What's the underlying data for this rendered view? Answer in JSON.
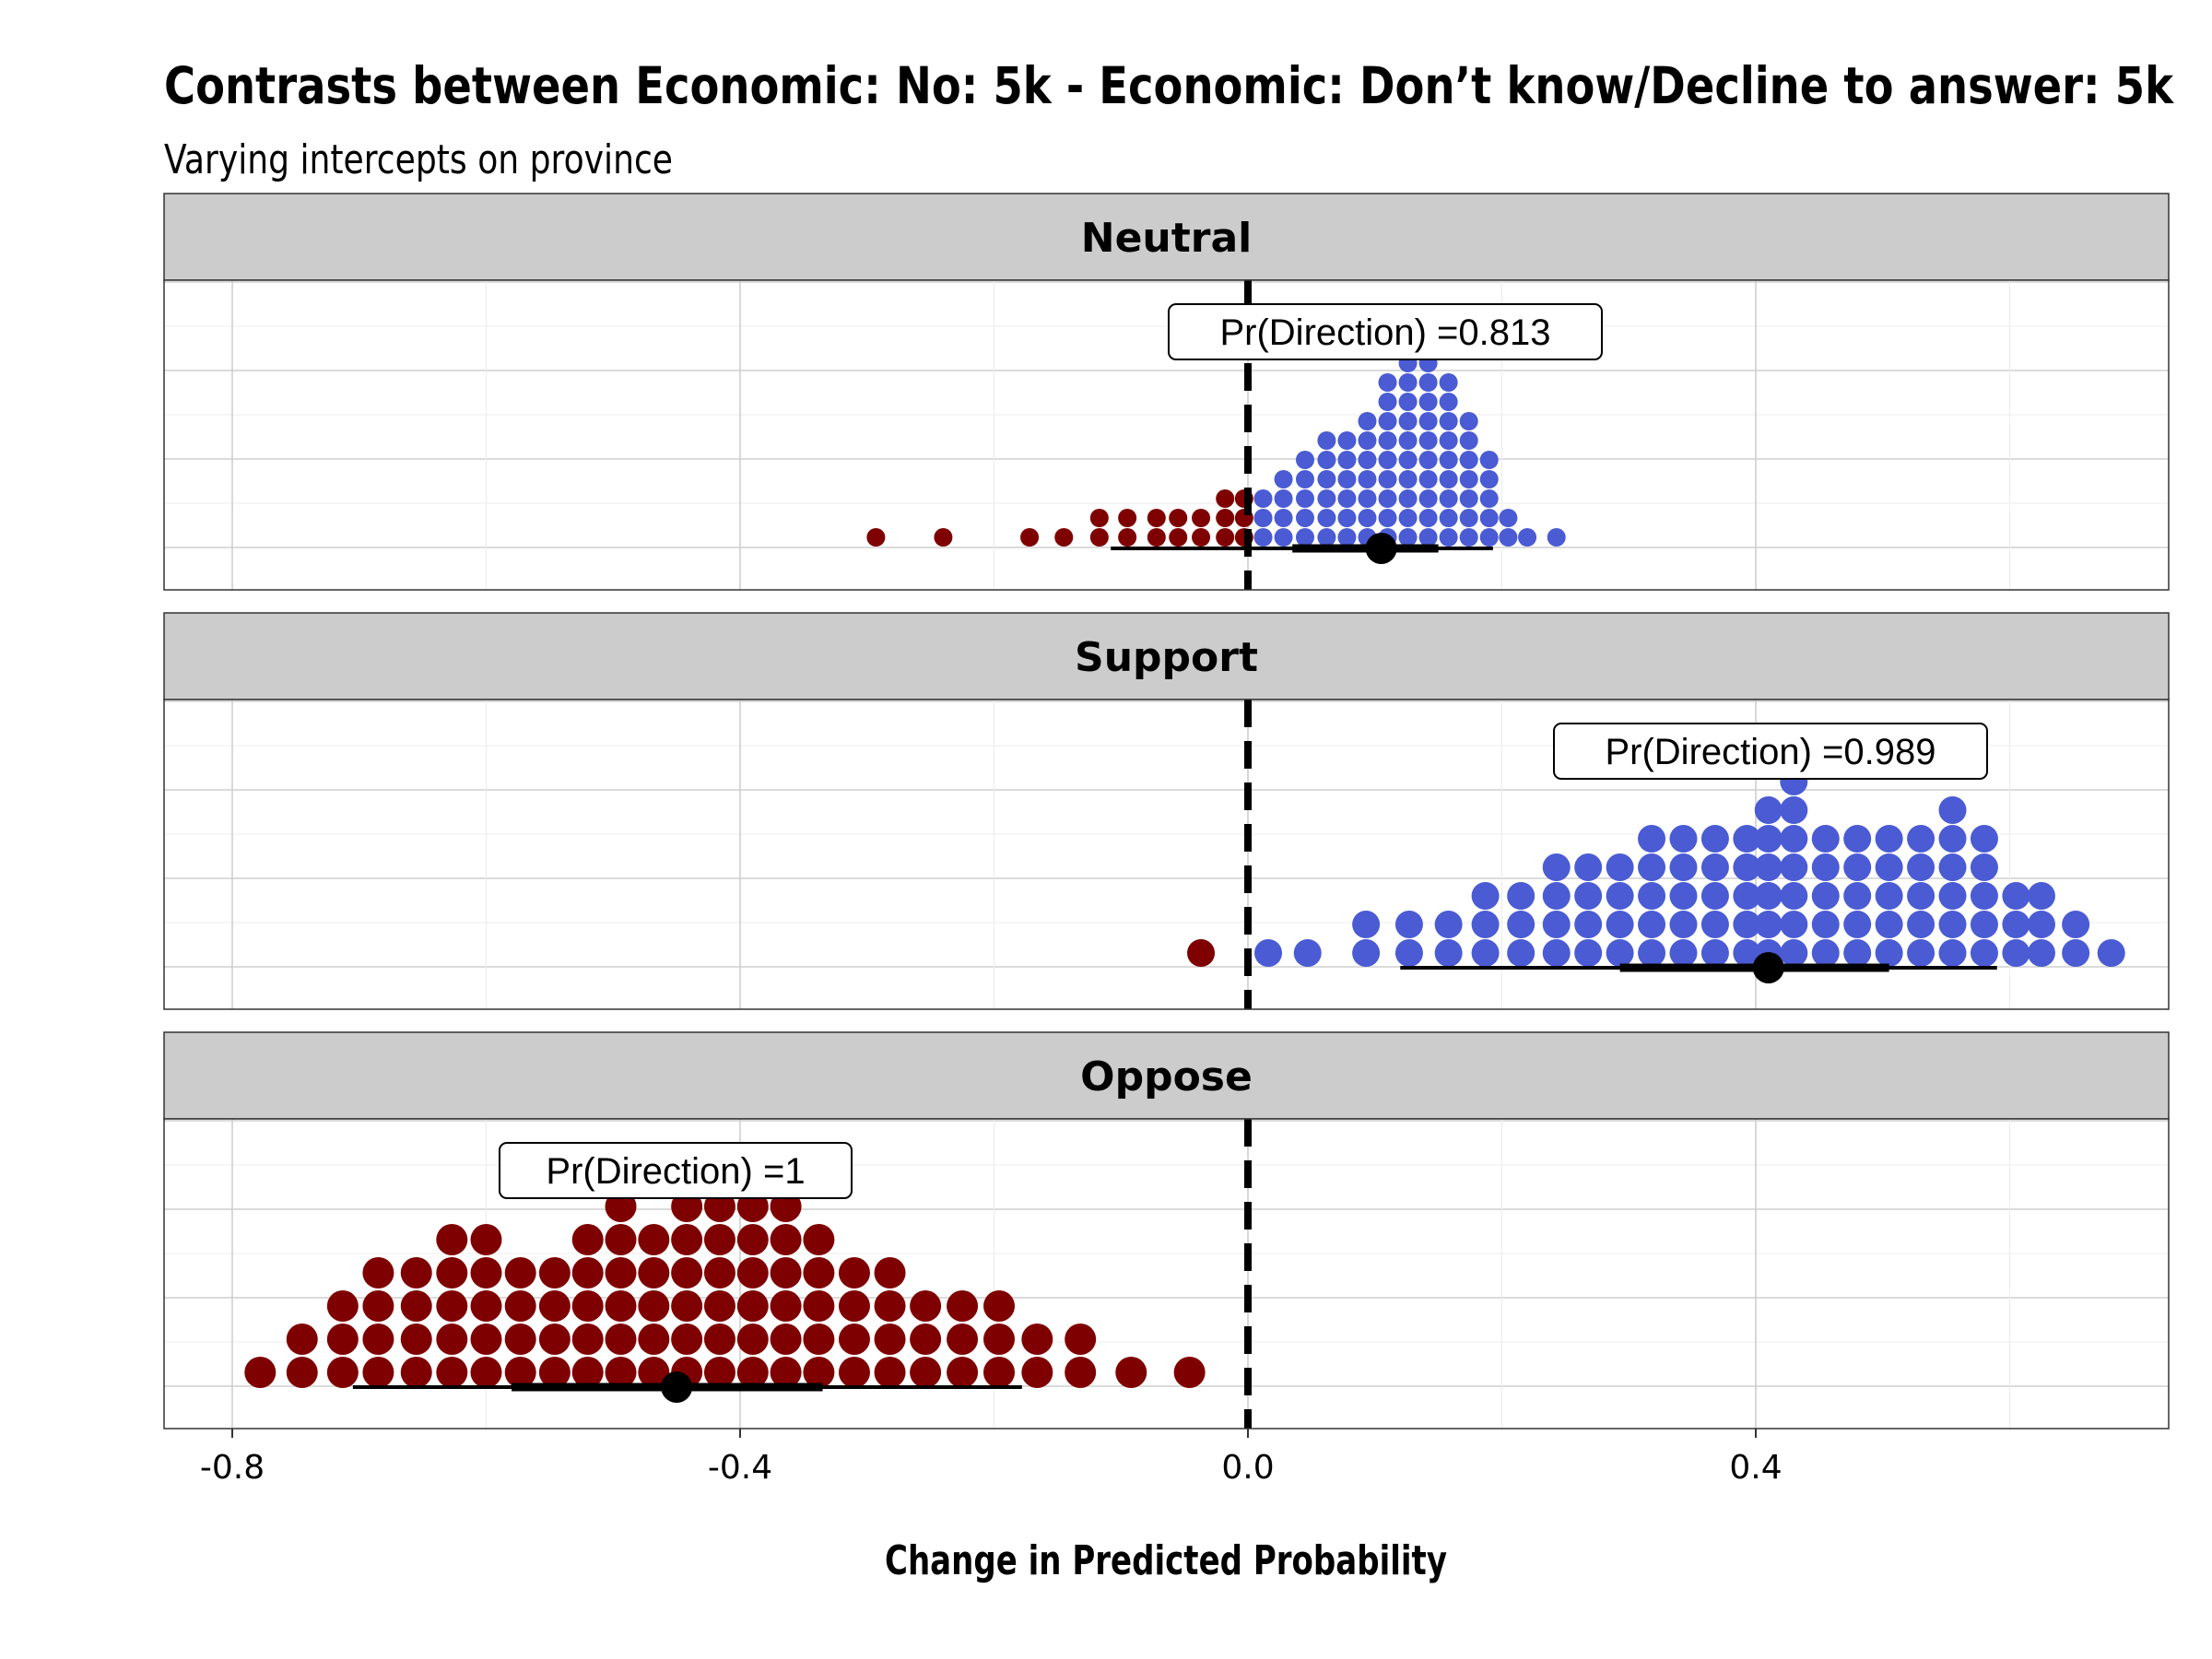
{
  "chart_data": {
    "type": "dotplot",
    "title": "Contrasts between Economic: No: 5k - Economic: Don’t know/Decline to answer: 5k",
    "subtitle": "Varying intercepts on province",
    "xlabel": "Change in Predicted Probability",
    "xlim": [
      -0.8,
      0.7
    ],
    "x_ticks": [
      -0.8,
      -0.4,
      0.0,
      0.4
    ],
    "x_tick_labels": [
      "-0.8",
      "-0.4",
      "0.0",
      "0.4"
    ],
    "reference_line": 0.0,
    "colors": {
      "negative": "#7f0000",
      "positive": "#4a5bd4",
      "strip_fill": "#cccccc",
      "grid": "#d9d9d9"
    },
    "panels": [
      {
        "label": "Neutral",
        "annotation": "Pr(Direction) =0.813",
        "point_estimate": 0.105,
        "interval_inner": [
          0.035,
          0.15
        ],
        "interval_outer": [
          -0.108,
          0.193
        ],
        "dot_columns": [
          {
            "x": -0.293,
            "n": 1
          },
          {
            "x": -0.24,
            "n": 1
          },
          {
            "x": -0.172,
            "n": 1
          },
          {
            "x": -0.145,
            "n": 1
          },
          {
            "x": -0.117,
            "n": 2
          },
          {
            "x": -0.095,
            "n": 2
          },
          {
            "x": -0.072,
            "n": 2
          },
          {
            "x": -0.055,
            "n": 2
          },
          {
            "x": -0.037,
            "n": 2
          },
          {
            "x": -0.018,
            "n": 3
          },
          {
            "x": -0.003,
            "n": 3
          },
          {
            "x": 0.012,
            "n": 3
          },
          {
            "x": 0.028,
            "n": 4
          },
          {
            "x": 0.045,
            "n": 5
          },
          {
            "x": 0.062,
            "n": 6
          },
          {
            "x": 0.078,
            "n": 6
          },
          {
            "x": 0.094,
            "n": 7
          },
          {
            "x": 0.11,
            "n": 9
          },
          {
            "x": 0.126,
            "n": 10
          },
          {
            "x": 0.142,
            "n": 11
          },
          {
            "x": 0.158,
            "n": 9
          },
          {
            "x": 0.174,
            "n": 7
          },
          {
            "x": 0.19,
            "n": 5
          },
          {
            "x": 0.205,
            "n": 2
          },
          {
            "x": 0.22,
            "n": 1
          },
          {
            "x": 0.243,
            "n": 1
          }
        ]
      },
      {
        "label": "Support",
        "annotation": "Pr(Direction) =0.989",
        "point_estimate": 0.41,
        "interval_inner": [
          0.293,
          0.505
        ],
        "interval_outer": [
          0.12,
          0.59
        ],
        "dot_columns": [
          {
            "x": -0.037,
            "n": 1
          },
          {
            "x": 0.016,
            "n": 1
          },
          {
            "x": 0.047,
            "n": 1
          },
          {
            "x": 0.093,
            "n": 2
          },
          {
            "x": 0.127,
            "n": 2
          },
          {
            "x": 0.158,
            "n": 2
          },
          {
            "x": 0.187,
            "n": 3
          },
          {
            "x": 0.215,
            "n": 3
          },
          {
            "x": 0.243,
            "n": 4
          },
          {
            "x": 0.268,
            "n": 4
          },
          {
            "x": 0.293,
            "n": 4
          },
          {
            "x": 0.318,
            "n": 5
          },
          {
            "x": 0.343,
            "n": 5
          },
          {
            "x": 0.368,
            "n": 5
          },
          {
            "x": 0.393,
            "n": 5
          },
          {
            "x": 0.41,
            "n": 6
          },
          {
            "x": 0.43,
            "n": 7
          },
          {
            "x": 0.455,
            "n": 5
          },
          {
            "x": 0.48,
            "n": 5
          },
          {
            "x": 0.505,
            "n": 5
          },
          {
            "x": 0.53,
            "n": 5
          },
          {
            "x": 0.555,
            "n": 6
          },
          {
            "x": 0.58,
            "n": 5
          },
          {
            "x": 0.605,
            "n": 3
          },
          {
            "x": 0.625,
            "n": 3
          },
          {
            "x": 0.652,
            "n": 2
          },
          {
            "x": 0.68,
            "n": 1
          }
        ]
      },
      {
        "label": "Oppose",
        "annotation": "Pr(Direction) =1",
        "point_estimate": -0.45,
        "interval_inner": [
          -0.58,
          -0.335
        ],
        "interval_outer": [
          -0.705,
          -0.178
        ],
        "dot_columns": [
          {
            "x": -0.778,
            "n": 1
          },
          {
            "x": -0.745,
            "n": 2
          },
          {
            "x": -0.713,
            "n": 3
          },
          {
            "x": -0.685,
            "n": 4
          },
          {
            "x": -0.655,
            "n": 4
          },
          {
            "x": -0.627,
            "n": 5
          },
          {
            "x": -0.6,
            "n": 5
          },
          {
            "x": -0.573,
            "n": 4
          },
          {
            "x": -0.546,
            "n": 4
          },
          {
            "x": -0.52,
            "n": 5
          },
          {
            "x": -0.494,
            "n": 6
          },
          {
            "x": -0.468,
            "n": 5
          },
          {
            "x": -0.442,
            "n": 6
          },
          {
            "x": -0.416,
            "n": 6
          },
          {
            "x": -0.39,
            "n": 6
          },
          {
            "x": -0.364,
            "n": 6
          },
          {
            "x": -0.338,
            "n": 5
          },
          {
            "x": -0.31,
            "n": 4
          },
          {
            "x": -0.282,
            "n": 4
          },
          {
            "x": -0.254,
            "n": 3
          },
          {
            "x": -0.225,
            "n": 3
          },
          {
            "x": -0.196,
            "n": 3
          },
          {
            "x": -0.166,
            "n": 2
          },
          {
            "x": -0.132,
            "n": 2
          },
          {
            "x": -0.092,
            "n": 1
          },
          {
            "x": -0.046,
            "n": 1
          }
        ]
      }
    ]
  }
}
